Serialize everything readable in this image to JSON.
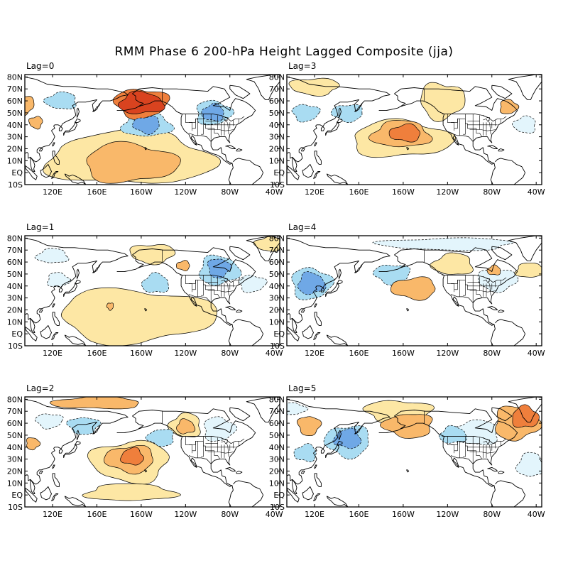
{
  "title": "RMM Phase 6 200-hPa Height Lagged Composite (jja)",
  "colors": {
    "pos1": "#fde7a4",
    "pos2": "#f9b86a",
    "pos3": "#ef7f3c",
    "pos4": "#d9431f",
    "neg1": "#e3f5fc",
    "neg2": "#a9dcf2",
    "neg3": "#6fa8e6",
    "neg4": "#3d74d6",
    "land": "#000000",
    "frame": "#000000"
  },
  "lat_ticks": [
    "80N",
    "70N",
    "60N",
    "50N",
    "40N",
    "30N",
    "20N",
    "10N",
    "EQ",
    "10S"
  ],
  "lon_ticks": [
    "120E",
    "160E",
    "160W",
    "120W",
    "80W",
    "40W"
  ],
  "panels": [
    {
      "label": "Lag=0",
      "features": [
        {
          "sign": "pos",
          "level": 4,
          "lon": -160,
          "lat": 58,
          "rx": 20,
          "ry": 9
        },
        {
          "sign": "pos",
          "level": 3,
          "lon": -160,
          "lat": 58,
          "rx": 24,
          "ry": 12
        },
        {
          "sign": "pos",
          "level": 2,
          "lon": -170,
          "lat": 8,
          "rx": 42,
          "ry": 16
        },
        {
          "sign": "pos",
          "level": 1,
          "lon": -170,
          "lat": 12,
          "rx": 75,
          "ry": 22
        },
        {
          "sign": "pos",
          "level": 2,
          "lon": 95,
          "lat": 57,
          "rx": 8,
          "ry": 8
        },
        {
          "sign": "pos",
          "level": 2,
          "lon": 105,
          "lat": 42,
          "rx": 6,
          "ry": 5
        },
        {
          "sign": "neg",
          "level": 2,
          "lon": 128,
          "lat": 60,
          "rx": 14,
          "ry": 7
        },
        {
          "sign": "neg",
          "level": 3,
          "lon": -155,
          "lat": 40,
          "rx": 12,
          "ry": 7
        },
        {
          "sign": "neg",
          "level": 2,
          "lon": -155,
          "lat": 40,
          "rx": 22,
          "ry": 10
        },
        {
          "sign": "neg",
          "level": 3,
          "lon": -95,
          "lat": 50,
          "rx": 10,
          "ry": 7
        },
        {
          "sign": "neg",
          "level": 2,
          "lon": -95,
          "lat": 50,
          "rx": 16,
          "ry": 10
        }
      ]
    },
    {
      "label": "Lag=3",
      "features": [
        {
          "sign": "pos",
          "level": 3,
          "lon": -158,
          "lat": 33,
          "rx": 14,
          "ry": 7
        },
        {
          "sign": "pos",
          "level": 2,
          "lon": -162,
          "lat": 32,
          "rx": 26,
          "ry": 11
        },
        {
          "sign": "pos",
          "level": 1,
          "lon": -162,
          "lat": 28,
          "rx": 45,
          "ry": 15
        },
        {
          "sign": "pos",
          "level": 1,
          "lon": -125,
          "lat": 60,
          "rx": 20,
          "ry": 15
        },
        {
          "sign": "pos",
          "level": 2,
          "lon": -65,
          "lat": 55,
          "rx": 8,
          "ry": 6
        },
        {
          "sign": "pos",
          "level": 1,
          "lon": 120,
          "lat": 72,
          "rx": 22,
          "ry": 7
        },
        {
          "sign": "neg",
          "level": 2,
          "lon": 112,
          "lat": 50,
          "rx": 12,
          "ry": 7
        },
        {
          "sign": "neg",
          "level": 2,
          "lon": 150,
          "lat": 50,
          "rx": 14,
          "ry": 7
        },
        {
          "sign": "neg",
          "level": 1,
          "lon": -50,
          "lat": 40,
          "rx": 10,
          "ry": 7
        }
      ]
    },
    {
      "label": "Lag=1",
      "features": [
        {
          "sign": "pos",
          "level": 1,
          "lon": -165,
          "lat": 15,
          "rx": 70,
          "ry": 22
        },
        {
          "sign": "pos",
          "level": 2,
          "lon": 172,
          "lat": 23,
          "rx": 3,
          "ry": 3
        },
        {
          "sign": "pos",
          "level": 1,
          "lon": -150,
          "lat": 67,
          "rx": 20,
          "ry": 8
        },
        {
          "sign": "pos",
          "level": 1,
          "lon": -45,
          "lat": 75,
          "rx": 12,
          "ry": 6
        },
        {
          "sign": "pos",
          "level": 2,
          "lon": -122,
          "lat": 57,
          "rx": 6,
          "ry": 4
        },
        {
          "sign": "neg",
          "level": 2,
          "lon": -147,
          "lat": 42,
          "rx": 12,
          "ry": 8
        },
        {
          "sign": "neg",
          "level": 3,
          "lon": -90,
          "lat": 55,
          "rx": 10,
          "ry": 8
        },
        {
          "sign": "neg",
          "level": 2,
          "lon": -90,
          "lat": 53,
          "rx": 18,
          "ry": 12
        },
        {
          "sign": "neg",
          "level": 1,
          "lon": 120,
          "lat": 65,
          "rx": 14,
          "ry": 6
        },
        {
          "sign": "neg",
          "level": 1,
          "lon": 125,
          "lat": 45,
          "rx": 10,
          "ry": 6
        },
        {
          "sign": "neg",
          "level": 1,
          "lon": -60,
          "lat": 42,
          "rx": 12,
          "ry": 7
        }
      ]
    },
    {
      "label": "Lag=4",
      "features": [
        {
          "sign": "neg",
          "level": 3,
          "lon": 117,
          "lat": 42,
          "rx": 12,
          "ry": 9
        },
        {
          "sign": "neg",
          "level": 2,
          "lon": 117,
          "lat": 42,
          "rx": 18,
          "ry": 13
        },
        {
          "sign": "neg",
          "level": 2,
          "lon": -170,
          "lat": 50,
          "rx": 16,
          "ry": 8
        },
        {
          "sign": "neg",
          "level": 1,
          "lon": -75,
          "lat": 45,
          "rx": 18,
          "ry": 9
        },
        {
          "sign": "neg",
          "level": 1,
          "lon": -120,
          "lat": 75,
          "rx": 60,
          "ry": 5
        },
        {
          "sign": "pos",
          "level": 2,
          "lon": -150,
          "lat": 38,
          "rx": 20,
          "ry": 9
        },
        {
          "sign": "pos",
          "level": 1,
          "lon": -115,
          "lat": 58,
          "rx": 18,
          "ry": 9
        },
        {
          "sign": "pos",
          "level": 1,
          "lon": -45,
          "lat": 53,
          "rx": 14,
          "ry": 6
        },
        {
          "sign": "pos",
          "level": 2,
          "lon": -78,
          "lat": 53,
          "rx": 6,
          "ry": 4
        }
      ]
    },
    {
      "label": "Lag=2",
      "features": [
        {
          "sign": "pos",
          "level": 3,
          "lon": -168,
          "lat": 32,
          "rx": 10,
          "ry": 7
        },
        {
          "sign": "pos",
          "level": 2,
          "lon": -170,
          "lat": 30,
          "rx": 22,
          "ry": 11
        },
        {
          "sign": "pos",
          "level": 1,
          "lon": -170,
          "lat": 28,
          "rx": 35,
          "ry": 17
        },
        {
          "sign": "pos",
          "level": 2,
          "lon": 160,
          "lat": 77,
          "rx": 40,
          "ry": 5
        },
        {
          "sign": "pos",
          "level": 2,
          "lon": -120,
          "lat": 57,
          "rx": 8,
          "ry": 6
        },
        {
          "sign": "pos",
          "level": 1,
          "lon": -120,
          "lat": 58,
          "rx": 14,
          "ry": 10
        },
        {
          "sign": "pos",
          "level": 2,
          "lon": 102,
          "lat": 43,
          "rx": 6,
          "ry": 5
        },
        {
          "sign": "pos",
          "level": 1,
          "lon": -170,
          "lat": 2,
          "rx": 40,
          "ry": 7
        },
        {
          "sign": "neg",
          "level": 2,
          "lon": 148,
          "lat": 58,
          "rx": 14,
          "ry": 7
        },
        {
          "sign": "neg",
          "level": 2,
          "lon": -142,
          "lat": 48,
          "rx": 12,
          "ry": 7
        },
        {
          "sign": "neg",
          "level": 1,
          "lon": -90,
          "lat": 55,
          "rx": 14,
          "ry": 10
        },
        {
          "sign": "neg",
          "level": 1,
          "lon": 117,
          "lat": 62,
          "rx": 12,
          "ry": 6
        }
      ]
    },
    {
      "label": "Lag=5",
      "features": [
        {
          "sign": "neg",
          "level": 3,
          "lon": 150,
          "lat": 47,
          "rx": 12,
          "ry": 8
        },
        {
          "sign": "neg",
          "level": 2,
          "lon": 150,
          "lat": 45,
          "rx": 20,
          "ry": 13
        },
        {
          "sign": "neg",
          "level": 2,
          "lon": 112,
          "lat": 35,
          "rx": 10,
          "ry": 7
        },
        {
          "sign": "neg",
          "level": 2,
          "lon": -115,
          "lat": 50,
          "rx": 12,
          "ry": 7
        },
        {
          "sign": "neg",
          "level": 1,
          "lon": -95,
          "lat": 52,
          "rx": 22,
          "ry": 10
        },
        {
          "sign": "neg",
          "level": 1,
          "lon": -45,
          "lat": 25,
          "rx": 12,
          "ry": 10
        },
        {
          "sign": "neg",
          "level": 1,
          "lon": 100,
          "lat": 72,
          "rx": 12,
          "ry": 5
        },
        {
          "sign": "pos",
          "level": 3,
          "lon": -50,
          "lat": 65,
          "rx": 12,
          "ry": 9
        },
        {
          "sign": "pos",
          "level": 2,
          "lon": -58,
          "lat": 60,
          "rx": 20,
          "ry": 14
        },
        {
          "sign": "pos",
          "level": 2,
          "lon": 115,
          "lat": 58,
          "rx": 10,
          "ry": 8
        },
        {
          "sign": "pos",
          "level": 2,
          "lon": -155,
          "lat": 58,
          "rx": 22,
          "ry": 10
        },
        {
          "sign": "pos",
          "level": 1,
          "lon": -165,
          "lat": 70,
          "rx": 30,
          "ry": 9
        }
      ]
    }
  ]
}
